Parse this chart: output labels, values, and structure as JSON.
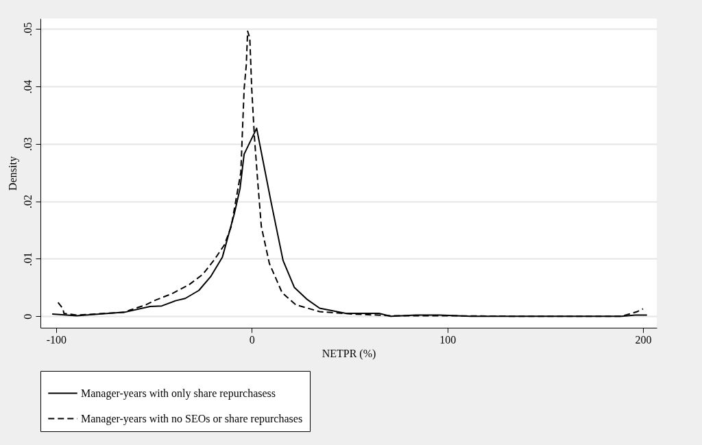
{
  "chart_data": {
    "type": "line",
    "xlabel": "NETPR (%)",
    "ylabel": "Density",
    "xlim": [
      -108,
      207
    ],
    "xticks": [
      -100,
      0,
      100,
      200
    ],
    "ylim": [
      -0.002,
      0.0518
    ],
    "yticks": [
      0,
      {
        "value": 0.01,
        "label": ".01"
      },
      {
        "value": 0.02,
        "label": ".02"
      },
      {
        "value": 0.03,
        "label": ".03"
      },
      {
        "value": 0.04,
        "label": ".04"
      },
      {
        "value": 0.05,
        "label": ".05"
      }
    ],
    "grid": "y",
    "legend": "bottom",
    "marker": "none",
    "series": [
      {
        "name": "Manager-years with only share repurchasess",
        "color": "#000000",
        "line_style": "solid",
        "x": [
          -102,
          -89.5,
          -65,
          -52,
          -46,
          -39,
          -34,
          -27,
          -21,
          -15,
          -9,
          -6,
          -3.9,
          2.5,
          9.8,
          16,
          21.8,
          28.4,
          34.7,
          48,
          65,
          71,
          84,
          95.8,
          112,
          136,
          152,
          166,
          189,
          196,
          202
        ],
        "values": [
          0.0004,
          0.0001,
          0.0007,
          0.0017,
          0.0018,
          0.0027,
          0.0031,
          0.0045,
          0.0069,
          0.0103,
          0.0177,
          0.0222,
          0.0282,
          0.0327,
          0.02,
          0.0097,
          0.005,
          0.0029,
          0.0014,
          0.0005,
          0.0005,
          0,
          0.0002,
          0.0002,
          0,
          0,
          0,
          0,
          0,
          0.0002,
          0.0002
        ]
      },
      {
        "name": "Manager-years with no SEOs or share repurchases",
        "color": "#000000",
        "line_style": "dashed",
        "x": [
          -99,
          -96.5,
          -96,
          -89.5,
          -65,
          -62,
          -54,
          -50,
          -41,
          -32,
          -25,
          -19,
          -14,
          -10.5,
          -5.6,
          -3.9,
          -2.8,
          -2.1,
          -1,
          0,
          1.4,
          3.2,
          4.9,
          9,
          15.5,
          22.5,
          34.7,
          51,
          71,
          95.8,
          136,
          166,
          189,
          197,
          200
        ],
        "values": [
          0.0024,
          0.0013,
          0.0005,
          0.0002,
          0.0007,
          0.0011,
          0.002,
          0.0027,
          0.0039,
          0.0055,
          0.0073,
          0.0099,
          0.0124,
          0.0156,
          0.025,
          0.0395,
          0.0437,
          0.0496,
          0.0484,
          0.0395,
          0.031,
          0.0228,
          0.0156,
          0.0092,
          0.0041,
          0.002,
          0.0008,
          0.0004,
          0.0001,
          0.0001,
          0,
          0,
          0,
          0.0008,
          0.0013
        ]
      }
    ]
  }
}
